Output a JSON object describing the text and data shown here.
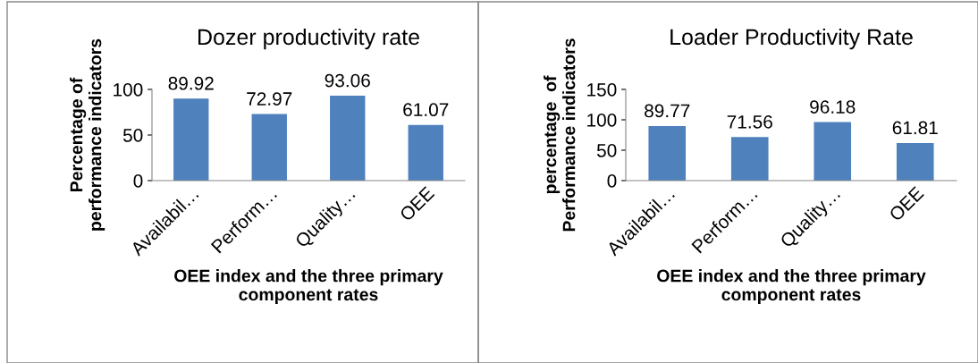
{
  "chart_data": [
    {
      "type": "bar",
      "title": "Dozer productivity rate",
      "xlabel": "OEE index and the three primary\ncomponent rates",
      "ylabel": "Percentage of\nperformance indicators",
      "categories": [
        "Availabil…",
        "Perform…",
        "Quality…",
        "OEE"
      ],
      "values": [
        89.92,
        72.97,
        93.06,
        61.07
      ],
      "color": "#4f81bd",
      "ylim": [
        0,
        100
      ],
      "yticks": [
        0,
        50,
        100
      ],
      "data_labels": true,
      "grid": false,
      "legend": false
    },
    {
      "type": "bar",
      "title": "Loader Productivity Rate",
      "xlabel": "OEE index and the three primary\ncomponent rates",
      "ylabel": "percentage  of\nPerformance indicators",
      "categories": [
        "Availabil…",
        "Perform…",
        "Quality…",
        "OEE"
      ],
      "values": [
        89.77,
        71.56,
        96.18,
        61.81
      ],
      "color": "#4f81bd",
      "ylim": [
        0,
        150
      ],
      "yticks": [
        0,
        50,
        100,
        150
      ],
      "data_labels": true,
      "grid": false,
      "legend": false
    }
  ]
}
